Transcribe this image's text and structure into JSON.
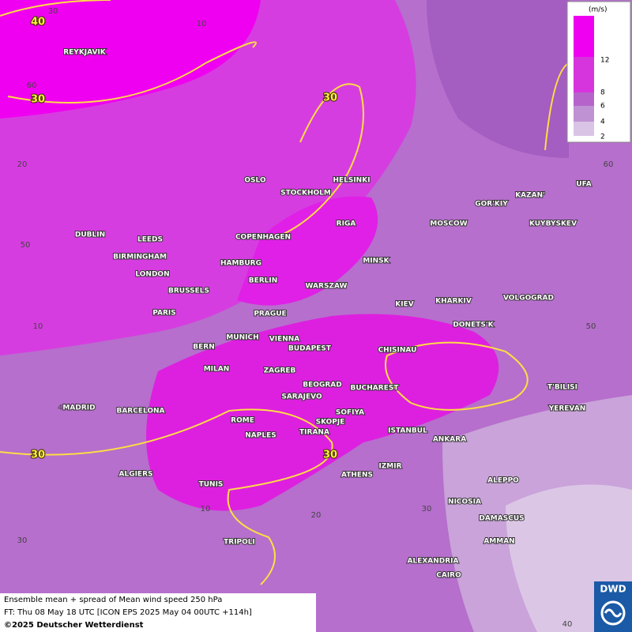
{
  "legend": {
    "unit": "(m/s)",
    "levels": [
      12,
      8,
      6,
      4,
      2
    ]
  },
  "cities": [
    "REYKJAVIK",
    "OSLO",
    "STOCKHOLM",
    "HELSINKI",
    "DUBLIN",
    "LEEDS",
    "COPENHAGEN",
    "RIGA",
    "MOSCOW",
    "GOR'KIY",
    "KAZAN'",
    "UFA",
    "KUYBYSKEV",
    "BIRMINGHAM",
    "HAMBURG",
    "MINSK",
    "LONDON",
    "BERLIN",
    "WARSZAW",
    "BRUSSELS",
    "KIEV",
    "KHARKIV",
    "VOLGOGRAD",
    "PARIS",
    "PRAGUE",
    "DONETS'K",
    "BERN",
    "MUNICH",
    "VIENNA",
    "BUDAPEST",
    "CHISINAU",
    "MILAN",
    "ZAGREB",
    "BEOGRAD",
    "BUCHAREST",
    "T'BILISI",
    "MADRID",
    "BARCELONA",
    "SARAJEVO",
    "SOFIYA",
    "YEREVAN",
    "ROME",
    "SKOPJE",
    "NAPLES",
    "TIRANA",
    "ISTANBUL",
    "ANKARA",
    "ALGIERS",
    "ATHENS",
    "IZMIR",
    "ALEPPO",
    "TUNIS",
    "NICOSIA",
    "DAMASCUS",
    "TRIPOLI",
    "AMMAN",
    "ALEXANDRIA",
    "CAIRO"
  ],
  "contour_labels": [
    40,
    30,
    30,
    30,
    30
  ],
  "grid_labels": [
    30,
    10,
    60,
    20,
    50,
    10,
    4,
    30,
    10,
    20,
    30,
    40,
    60,
    50
  ],
  "footer": {
    "product": "Ensemble mean + spread of Mean wind speed 250 hPa",
    "forecast": "FT: Thu 08 May 18 UTC [ICON EPS 2025 May 04 00UTC +114h]",
    "copyright": "©2025 Deutscher Wetterdienst"
  },
  "logo": "DWD"
}
